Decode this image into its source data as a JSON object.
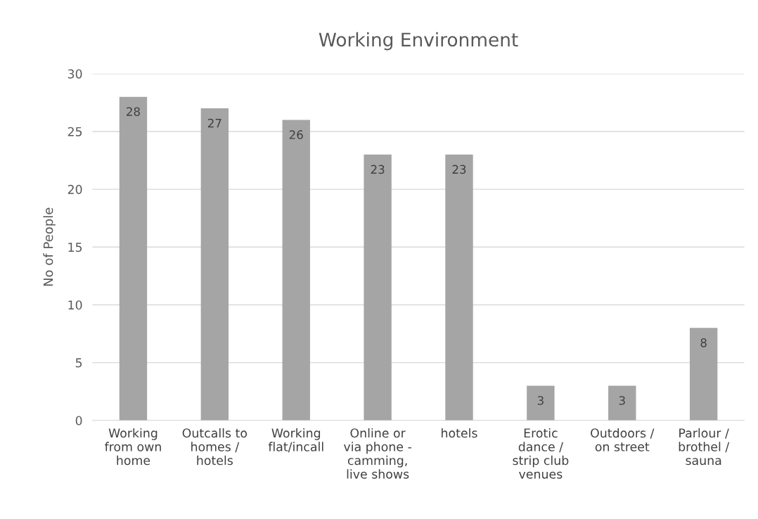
{
  "chart_data": {
    "type": "bar",
    "title": "Working Environment",
    "ylabel": "No of People",
    "categories": [
      "Working\nfrom own\nhome",
      "Outcalls to\nhomes /\nhotels",
      "Working\nflat/incall",
      "Online or\nvia phone -\ncamming,\nlive shows",
      "hotels",
      "Erotic\ndance /\nstrip club\nvenues",
      "Outdoors /\non street",
      "Parlour /\nbrothel /\nsauna"
    ],
    "values": [
      28,
      27,
      26,
      23,
      23,
      3,
      3,
      8
    ],
    "color": "#a5a5a5",
    "ylim": [
      0,
      30
    ],
    "yticks": [
      0,
      5,
      10,
      15,
      20,
      25,
      30
    ],
    "grid": "y",
    "data_labels": true,
    "legend": false
  }
}
